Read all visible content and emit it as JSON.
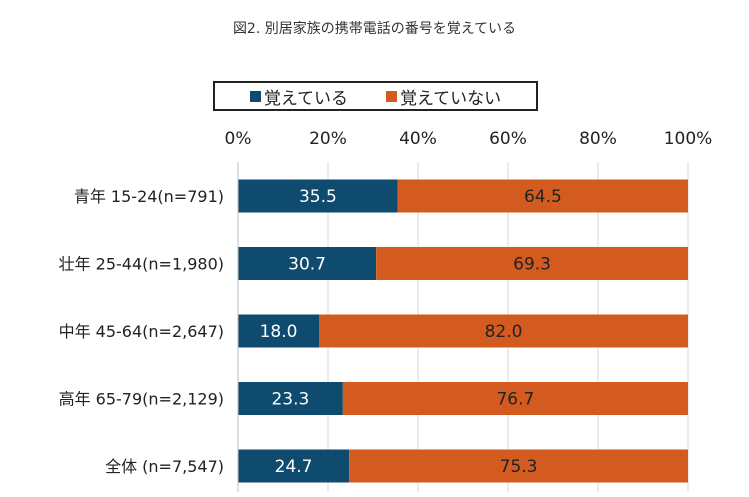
{
  "chart_data": {
    "type": "bar",
    "orientation": "horizontal",
    "stacked": "percent",
    "title": "図2. 別居家族の携帯電話の番号を覚えている",
    "categories": [
      "青年 15-24(n=791)",
      "壮年 25-44(n=1,980)",
      "中年 45-64(n=2,647)",
      "高年 65-79(n=2,129)",
      "全体 (n=7,547)"
    ],
    "series": [
      {
        "name": "覚えている",
        "color": "#0f4b6e",
        "label_color": "#ffffff",
        "values": [
          35.5,
          30.7,
          18.0,
          23.3,
          24.7
        ]
      },
      {
        "name": "覚えていない",
        "color": "#d45b1f",
        "label_color": "#222222",
        "values": [
          64.5,
          69.3,
          82.0,
          76.7,
          75.3
        ]
      }
    ],
    "xlim": [
      0,
      100
    ],
    "xticks": [
      "0%",
      "20%",
      "40%",
      "60%",
      "80%",
      "100%"
    ],
    "xaxis_position": "top",
    "grid": true,
    "legend_position": "top"
  }
}
